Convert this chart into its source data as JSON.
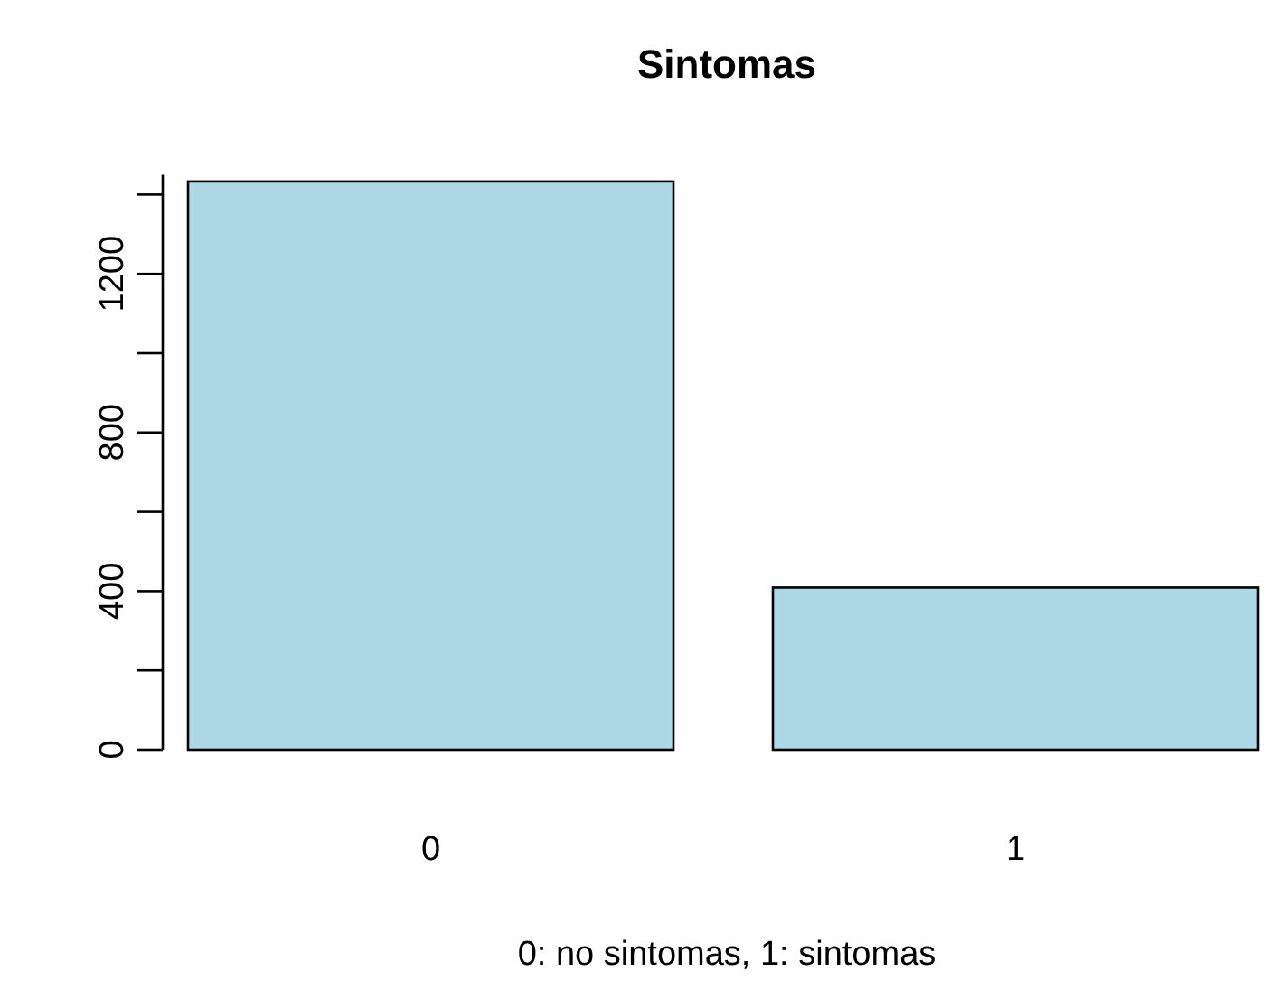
{
  "chart_data": {
    "type": "bar",
    "title": "Sintomas",
    "xlabel": "0: no sintomas, 1: sintomas",
    "categories": [
      "0",
      "1"
    ],
    "values": [
      1433,
      409
    ],
    "color": "#add8e6",
    "ylim": [
      0,
      1450
    ],
    "yticks": [
      0,
      {
        "value": 200,
        "label": null
      },
      400,
      {
        "value": 600,
        "label": null
      },
      800,
      {
        "value": 1000,
        "label": null
      },
      1200,
      {
        "value": 1400,
        "label": null
      }
    ],
    "grid": false
  }
}
